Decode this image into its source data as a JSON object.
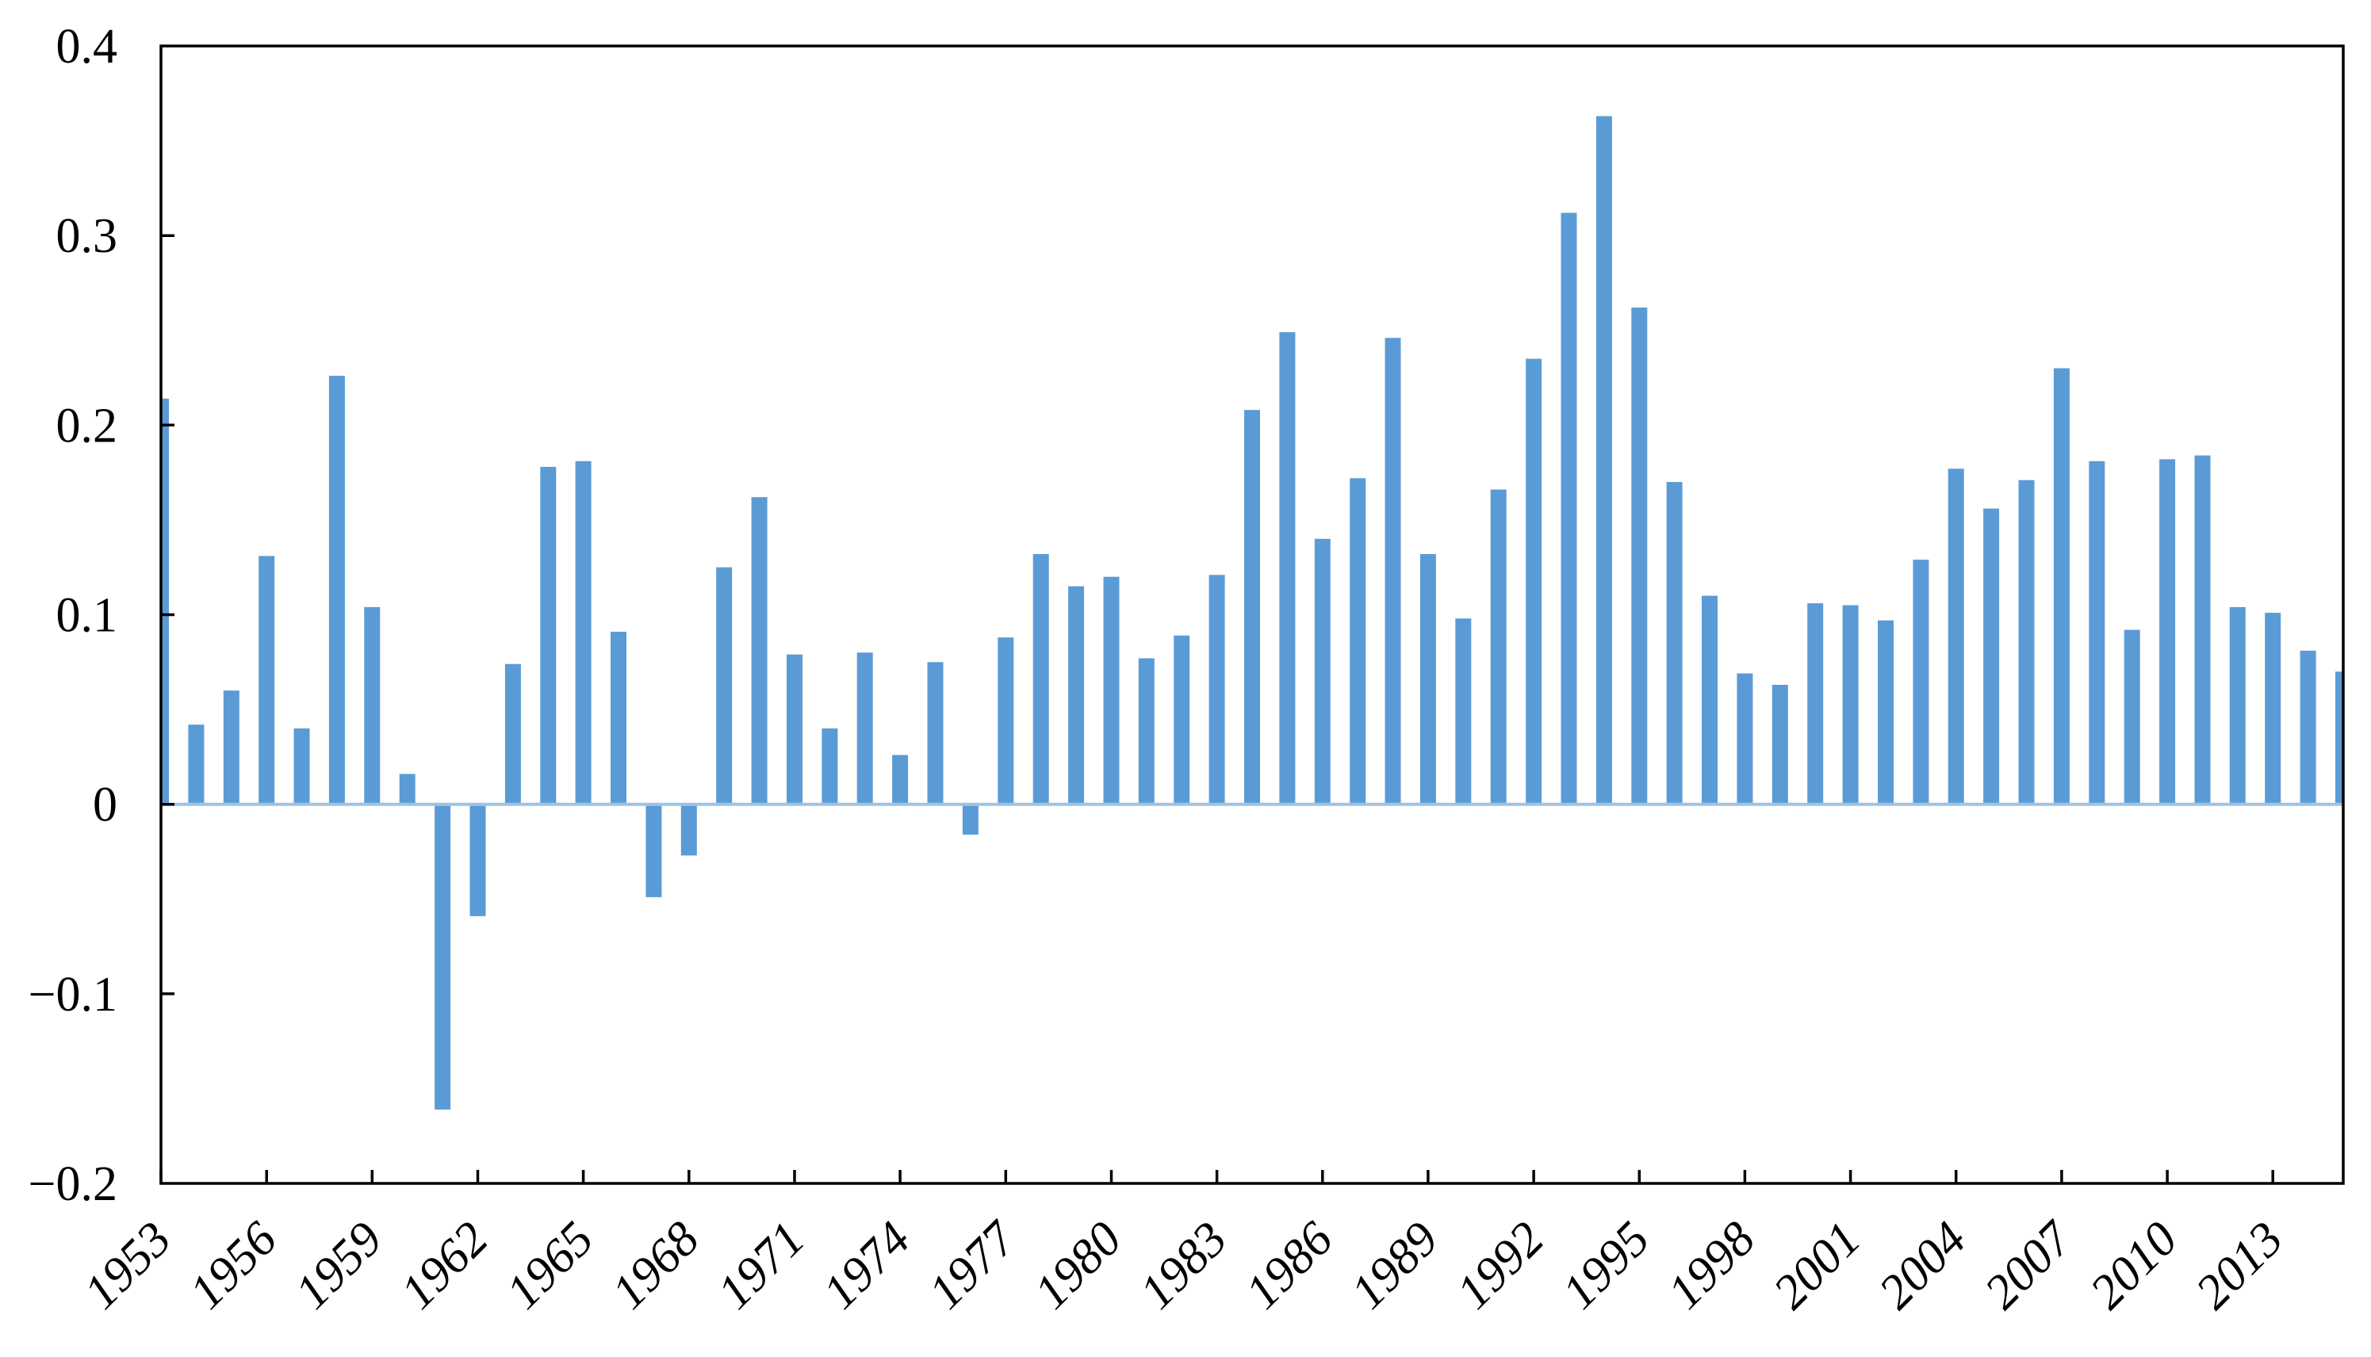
{
  "chart_data": {
    "type": "bar",
    "title": "",
    "xlabel": "",
    "ylabel": "",
    "grid": false,
    "legend": null,
    "ylim": [
      -0.2,
      0.4
    ],
    "y_tick_values": [
      0.4,
      0.3,
      0.2,
      0.1,
      0,
      -0.1,
      -0.2
    ],
    "y_tick_labels": [
      "0.4",
      "0.3",
      "0.2",
      "0.1",
      "0",
      "−0.1",
      "−0.2"
    ],
    "x_tick_label_years": [
      1953,
      1956,
      1959,
      1962,
      1965,
      1968,
      1971,
      1974,
      1977,
      1980,
      1983,
      1986,
      1989,
      1992,
      1995,
      1998,
      2001,
      2004,
      2007,
      2010,
      2013
    ],
    "x_tick_labels": [
      "1953",
      "1956",
      "1959",
      "1962",
      "1965",
      "1968",
      "1971",
      "1974",
      "1977",
      "1980",
      "1983",
      "1986",
      "1989",
      "1992",
      "1995",
      "1998",
      "2001",
      "2004",
      "2007",
      "2010",
      "2013"
    ],
    "categories": [
      1953,
      1954,
      1955,
      1956,
      1957,
      1958,
      1959,
      1960,
      1961,
      1962,
      1963,
      1964,
      1965,
      1966,
      1967,
      1968,
      1969,
      1970,
      1971,
      1972,
      1973,
      1974,
      1975,
      1976,
      1977,
      1978,
      1979,
      1980,
      1981,
      1982,
      1983,
      1984,
      1985,
      1986,
      1987,
      1988,
      1989,
      1990,
      1991,
      1992,
      1993,
      1994,
      1995,
      1996,
      1997,
      1998,
      1999,
      2000,
      2001,
      2002,
      2003,
      2004,
      2005,
      2006,
      2007,
      2008,
      2009,
      2010,
      2011,
      2012,
      2013,
      2014,
      2015
    ],
    "values": [
      0.214,
      0.042,
      0.06,
      0.131,
      0.04,
      0.226,
      0.104,
      0.016,
      -0.161,
      -0.059,
      0.074,
      0.178,
      0.181,
      0.091,
      -0.049,
      -0.027,
      0.125,
      0.162,
      0.079,
      0.04,
      0.08,
      0.026,
      0.075,
      -0.016,
      0.088,
      0.132,
      0.115,
      0.12,
      0.077,
      0.089,
      0.121,
      0.208,
      0.249,
      0.14,
      0.172,
      0.246,
      0.132,
      0.098,
      0.166,
      0.235,
      0.312,
      0.363,
      0.262,
      0.17,
      0.11,
      0.069,
      0.063,
      0.106,
      0.105,
      0.097,
      0.129,
      0.177,
      0.156,
      0.171,
      0.23,
      0.181,
      0.092,
      0.182,
      0.184,
      0.104,
      0.101,
      0.081,
      0.07
    ],
    "colors": {
      "bar": "#5B9BD5",
      "zero_line": "#9DC3E6",
      "axis": "#000000",
      "background": "#FFFFFF",
      "label_text": "#000000"
    }
  }
}
